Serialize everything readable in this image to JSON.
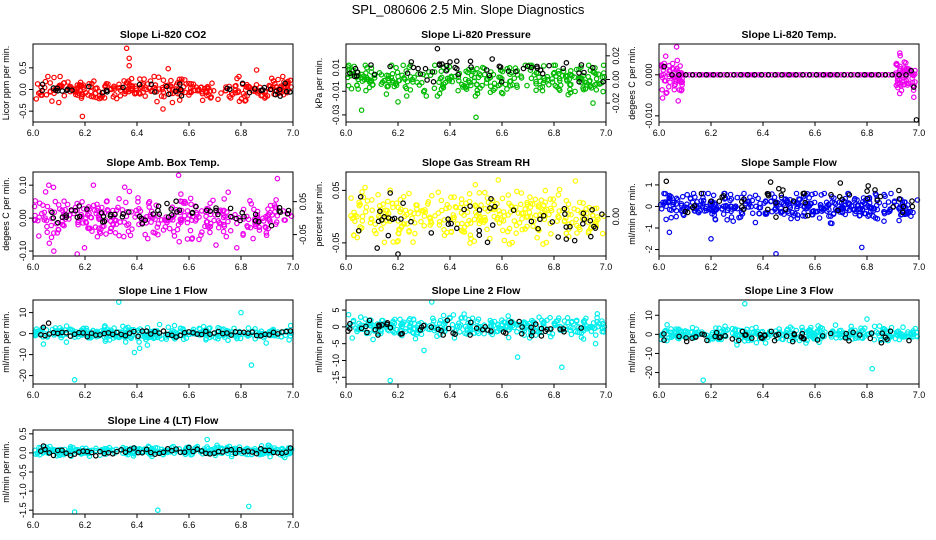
{
  "figure": {
    "title": "SPL_080606  2.5 Min. Slope Diagnostics"
  },
  "chart_data": [
    {
      "type": "scatter",
      "title": "Slope Li-820 CO2",
      "ylabel": "Licor ppm per min.",
      "xlim": [
        6.0,
        7.0
      ],
      "ylim": [
        -0.75,
        1.05
      ],
      "xticks": [
        6.0,
        6.2,
        6.4,
        6.6,
        6.8,
        7.0
      ],
      "xtick_labels": [
        "6.0",
        "6.2",
        "6.4",
        "6.6",
        "6.8",
        "7.0"
      ],
      "yticks": [
        -0.5,
        0.0,
        0.5
      ],
      "ytick_labels": [
        "-0.5",
        "0.0",
        "0.5"
      ],
      "grid": false,
      "series": [
        {
          "color": "#ff0000",
          "kind": "random",
          "center": 0.0,
          "spread": 0.12,
          "range": [
            -0.3,
            0.3
          ],
          "count": 300,
          "extra": [
            [
              6.36,
              0.95
            ],
            [
              6.37,
              0.72
            ],
            [
              6.37,
              0.55
            ],
            [
              6.19,
              -0.62
            ],
            [
              6.5,
              -0.45
            ],
            [
              6.86,
              0.45
            ],
            [
              6.52,
              0.48
            ]
          ]
        },
        {
          "color": "#000000",
          "kind": "random",
          "center": 0.0,
          "spread": 0.08,
          "range": [
            -0.25,
            0.35
          ],
          "count": 40
        }
      ]
    },
    {
      "type": "scatter",
      "title": "Slope Li-820 Pressure",
      "ylabel": "kPa per min.",
      "xlim": [
        6.0,
        7.0
      ],
      "ylim": [
        -0.036,
        0.03
      ],
      "xticks": [
        6.0,
        6.2,
        6.4,
        6.6,
        6.8,
        7.0
      ],
      "xtick_labels": [
        "6.0",
        "6.2",
        "6.4",
        "6.6",
        "6.8",
        "7.0"
      ],
      "yticks": [
        -0.03,
        -0.01,
        0.01
      ],
      "ytick_labels": [
        "-0.03",
        "-0.01",
        "0.01"
      ],
      "y2ticks": [
        -0.02,
        0.0,
        0.02
      ],
      "y2tick_labels": [
        "-0.02",
        "0.00",
        "0.02"
      ],
      "grid": false,
      "series": [
        {
          "color": "#00bb00",
          "kind": "random",
          "center": 0.0,
          "spread": 0.006,
          "range": [
            -0.014,
            0.012
          ],
          "count": 300,
          "extra": [
            [
              6.5,
              -0.032
            ],
            [
              6.06,
              -0.026
            ],
            [
              6.95,
              -0.02
            ],
            [
              6.2,
              -0.019
            ]
          ]
        },
        {
          "color": "#000000",
          "kind": "random",
          "center": 0.008,
          "spread": 0.006,
          "range": [
            -0.002,
            0.026
          ],
          "count": 55
        }
      ]
    },
    {
      "type": "scatter",
      "title": "Slope Li-820 Temp.",
      "ylabel": "degees C per min.",
      "xlim": [
        6.0,
        7.0
      ],
      "ylim": [
        -0.0115,
        0.0075
      ],
      "xticks": [
        6.0,
        6.2,
        6.4,
        6.6,
        6.8,
        7.0
      ],
      "xtick_labels": [
        "6.0",
        "6.2",
        "6.4",
        "6.6",
        "6.8",
        "7.0"
      ],
      "yticks": [
        -0.01,
        0.0
      ],
      "ytick_labels": [
        "-0.010",
        "0.000"
      ],
      "grid": false,
      "series": [
        {
          "color": "#ee00ee",
          "kind": "edges",
          "center": 0.0,
          "spread": 0.0025,
          "count": 120
        },
        {
          "color": "#ee00ee",
          "kind": "line",
          "value": 0.0,
          "count": 70,
          "xrange": [
            6.08,
            6.92
          ]
        },
        {
          "color": "#000000",
          "kind": "line",
          "value": 0.0,
          "count": 35,
          "xrange": [
            6.05,
            6.95
          ],
          "extra": [
            [
              6.02,
              0.002
            ],
            [
              6.98,
              -0.003
            ],
            [
              6.99,
              -0.011
            ],
            [
              6.97,
              0.001
            ]
          ]
        }
      ]
    },
    {
      "type": "scatter",
      "title": "Slope Amb. Box Temp.",
      "ylabel": "degees C per min.",
      "xlim": [
        6.0,
        7.0
      ],
      "ylim": [
        -0.115,
        0.14
      ],
      "xticks": [
        6.0,
        6.2,
        6.4,
        6.6,
        6.8,
        7.0
      ],
      "xtick_labels": [
        "6.0",
        "6.2",
        "6.4",
        "6.6",
        "6.8",
        "7.0"
      ],
      "yticks": [
        -0.1,
        0.0,
        0.1
      ],
      "ytick_labels": [
        "-0.10",
        "0.00",
        "0.10"
      ],
      "y2ticks": [
        -0.05,
        0.05
      ],
      "y2tick_labels": [
        "-0.05",
        "0.05"
      ],
      "grid": false,
      "series": [
        {
          "color": "#ee00ee",
          "kind": "random",
          "center": 0.0,
          "spread": 0.035,
          "range": [
            -0.09,
            0.1
          ],
          "count": 330,
          "extra": [
            [
              6.56,
              0.13
            ],
            [
              6.17,
              -0.11
            ],
            [
              6.94,
              0.12
            ],
            [
              6.08,
              -0.1
            ]
          ]
        },
        {
          "color": "#000000",
          "kind": "random",
          "center": 0.01,
          "spread": 0.02,
          "range": [
            -0.04,
            0.06
          ],
          "count": 60
        }
      ]
    },
    {
      "type": "scatter",
      "title": "Slope Gas Stream RH",
      "ylabel": "percent per min.",
      "xlim": [
        6.0,
        7.0
      ],
      "ylim": [
        -0.075,
        0.085
      ],
      "xticks": [
        6.0,
        6.2,
        6.4,
        6.6,
        6.8,
        7.0
      ],
      "xtick_labels": [
        "6.0",
        "6.2",
        "6.4",
        "6.6",
        "6.8",
        "7.0"
      ],
      "yticks": [
        -0.05,
        0.05
      ],
      "ytick_labels": [
        "-0.05",
        "0.05"
      ],
      "y2ticks": [
        0.0
      ],
      "y2tick_labels": [
        "0.00"
      ],
      "grid": false,
      "series": [
        {
          "color": "#ffff00",
          "kind": "random",
          "center": 0.0,
          "spread": 0.022,
          "range": [
            -0.06,
            0.07
          ],
          "count": 330
        },
        {
          "color": "#000000",
          "kind": "random",
          "center": -0.005,
          "spread": 0.025,
          "range": [
            -0.07,
            0.05
          ],
          "count": 50,
          "extra": [
            [
              6.12,
              -0.06
            ],
            [
              6.2,
              -0.073
            ],
            [
              6.17,
              0.045
            ]
          ]
        }
      ]
    },
    {
      "type": "scatter",
      "title": "Slope Sample Flow",
      "ylabel": "ml/min per min.",
      "xlim": [
        6.0,
        7.0
      ],
      "ylim": [
        -2.3,
        1.6
      ],
      "xticks": [
        6.0,
        6.2,
        6.4,
        6.6,
        6.8,
        7.0
      ],
      "xtick_labels": [
        "6.0",
        "6.2",
        "6.4",
        "6.6",
        "6.8",
        "7.0"
      ],
      "yticks": [
        -2,
        -1,
        0,
        1
      ],
      "ytick_labels": [
        "-2",
        "-1",
        "0",
        "1"
      ],
      "grid": false,
      "series": [
        {
          "color": "#0000ee",
          "kind": "random",
          "center": 0.0,
          "spread": 0.3,
          "range": [
            -1.8,
            0.6
          ],
          "count": 380,
          "extra": [
            [
              6.45,
              -2.2
            ],
            [
              6.78,
              -1.9
            ],
            [
              6.2,
              -1.5
            ],
            [
              6.04,
              -1.2
            ]
          ]
        },
        {
          "color": "#000000",
          "kind": "random",
          "center": 0.4,
          "spread": 0.45,
          "range": [
            -0.6,
            1.5
          ],
          "count": 50
        }
      ]
    },
    {
      "type": "scatter",
      "title": "Slope Line 1 Flow",
      "ylabel": "ml/min per min.",
      "xlim": [
        6.0,
        7.0
      ],
      "ylim": [
        -24.0,
        16.0
      ],
      "xticks": [
        6.0,
        6.2,
        6.4,
        6.6,
        6.8,
        7.0
      ],
      "xtick_labels": [
        "6.0",
        "6.2",
        "6.4",
        "6.6",
        "6.8",
        "7.0"
      ],
      "yticks": [
        -20,
        -10,
        0,
        10
      ],
      "ytick_labels": [
        "-20",
        "-10",
        "0",
        "10"
      ],
      "grid": false,
      "series": [
        {
          "color": "#00eeee",
          "kind": "random",
          "center": 0.0,
          "spread": 1.6,
          "range": [
            -5,
            5
          ],
          "count": 330,
          "extra": [
            [
              6.33,
              15.0
            ],
            [
              6.16,
              -22.0
            ],
            [
              6.84,
              -15.0
            ],
            [
              6.39,
              -9.0
            ],
            [
              6.41,
              -7.0
            ],
            [
              6.8,
              10.0
            ],
            [
              6.44,
              -5.5
            ]
          ]
        },
        {
          "color": "#000000",
          "kind": "line",
          "value": 0.0,
          "jitter": 0.7,
          "count": 60,
          "xrange": [
            6.03,
            6.99
          ],
          "extra": [
            [
              6.04,
              3.0
            ],
            [
              6.06,
              5.0
            ]
          ]
        }
      ]
    },
    {
      "type": "scatter",
      "title": "Slope Line 2 Flow",
      "ylabel": "ml/min per min.",
      "xlim": [
        6.0,
        7.0
      ],
      "ylim": [
        -17.0,
        8.0
      ],
      "xticks": [
        6.0,
        6.2,
        6.4,
        6.6,
        6.8,
        7.0
      ],
      "xtick_labels": [
        "6.0",
        "6.2",
        "6.4",
        "6.6",
        "6.8",
        "7.0"
      ],
      "yticks": [
        -15,
        -10,
        -5,
        0,
        5
      ],
      "ytick_labels": [
        "-15",
        "-10",
        "-5",
        "0",
        "5"
      ],
      "grid": false,
      "series": [
        {
          "color": "#00eeee",
          "kind": "random",
          "center": 0.0,
          "spread": 1.4,
          "range": [
            -4,
            4
          ],
          "count": 330,
          "extra": [
            [
              6.17,
              -16.0
            ],
            [
              6.33,
              7.5
            ],
            [
              6.66,
              -9.0
            ],
            [
              6.83,
              -12.0
            ],
            [
              6.3,
              -7.0
            ],
            [
              6.96,
              -5.0
            ]
          ]
        },
        {
          "color": "#000000",
          "kind": "random",
          "center": -0.5,
          "spread": 1.2,
          "range": [
            -3,
            3.5
          ],
          "count": 55
        }
      ]
    },
    {
      "type": "scatter",
      "title": "Slope Line 3 Flow",
      "ylabel": "ml/min per min.",
      "xlim": [
        6.0,
        7.0
      ],
      "ylim": [
        -26.0,
        18.0
      ],
      "xticks": [
        6.0,
        6.2,
        6.4,
        6.6,
        6.8,
        7.0
      ],
      "xtick_labels": [
        "6.0",
        "6.2",
        "6.4",
        "6.6",
        "6.8",
        "7.0"
      ],
      "yticks": [
        -20,
        -10,
        0,
        10
      ],
      "ytick_labels": [
        "-20",
        "-10",
        "0",
        "10"
      ],
      "grid": false,
      "series": [
        {
          "color": "#00eeee",
          "kind": "random",
          "center": 0.0,
          "spread": 1.8,
          "range": [
            -6,
            6
          ],
          "count": 330,
          "extra": [
            [
              6.17,
              -24.0
            ],
            [
              6.33,
              16.0
            ],
            [
              6.82,
              -18.0
            ],
            [
              6.8,
              8.0
            ]
          ]
        },
        {
          "color": "#000000",
          "kind": "random",
          "center": -1.0,
          "spread": 1.5,
          "range": [
            -5,
            4
          ],
          "count": 55
        }
      ]
    },
    {
      "type": "scatter",
      "title": "Slope Line 4 (LT) Flow",
      "ylabel": "ml/min per min.",
      "xlim": [
        6.0,
        7.0
      ],
      "ylim": [
        -1.6,
        0.6
      ],
      "xticks": [
        6.0,
        6.2,
        6.4,
        6.6,
        6.8,
        7.0
      ],
      "xtick_labels": [
        "6.0",
        "6.2",
        "6.4",
        "6.6",
        "6.8",
        "7.0"
      ],
      "yticks": [
        -1.5,
        -1.0,
        -0.5,
        0.0,
        0.5
      ],
      "ytick_labels": [
        "-1.5",
        "-1.0",
        "-0.5",
        "0.0",
        "0.5"
      ],
      "grid": false,
      "series": [
        {
          "color": "#00eeee",
          "kind": "random",
          "center": 0.05,
          "spread": 0.06,
          "range": [
            -0.12,
            0.2
          ],
          "count": 330,
          "extra": [
            [
              6.16,
              -1.55
            ],
            [
              6.48,
              -1.5
            ],
            [
              6.83,
              -1.4
            ],
            [
              6.67,
              0.35
            ]
          ]
        },
        {
          "color": "#000000",
          "kind": "line",
          "value": 0.03,
          "jitter": 0.05,
          "count": 60,
          "xrange": [
            6.03,
            6.99
          ],
          "extra": [
            [
              6.04,
              0.18
            ]
          ]
        }
      ]
    }
  ]
}
